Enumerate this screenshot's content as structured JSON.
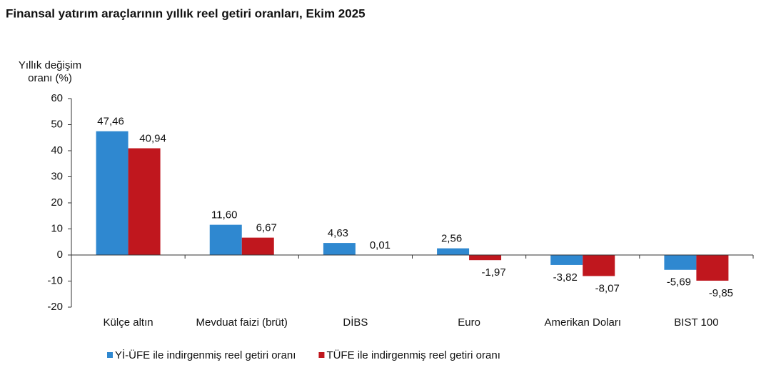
{
  "chart_data": {
    "type": "bar",
    "title": "Finansal yatırım araçlarının yıllık reel getiri oranları, Ekim 2025",
    "y_label": "Yıllık değişim oranı (%)",
    "categories": [
      "Külçe altın",
      "Mevduat faizi (brüt)",
      "DİBS",
      "Euro",
      "Amerikan Doları",
      "BIST 100"
    ],
    "series": [
      {
        "name": "Yİ-ÜFE ile indirgenmiş reel getiri oranı",
        "color": "#2f88d0",
        "values": [
          47.46,
          11.6,
          4.63,
          2.56,
          -3.82,
          -5.69
        ],
        "value_labels": [
          "47,46",
          "11,60",
          "4,63",
          "2,56",
          "-3,82",
          "-5,69"
        ]
      },
      {
        "name": "TÜFE ile indirgenmiş reel getiri oranı",
        "color": "#c0171e",
        "values": [
          40.94,
          6.67,
          0.01,
          -1.97,
          -8.07,
          -9.85
        ],
        "value_labels": [
          "40,94",
          "6,67",
          "0,01",
          "-1,97",
          "-8,07",
          "-9,85"
        ]
      }
    ],
    "ylim": [
      -20,
      60
    ],
    "yticks": [
      -20,
      -10,
      0,
      10,
      20,
      30,
      40,
      50,
      60
    ],
    "grid": false,
    "legend": "bottom"
  }
}
